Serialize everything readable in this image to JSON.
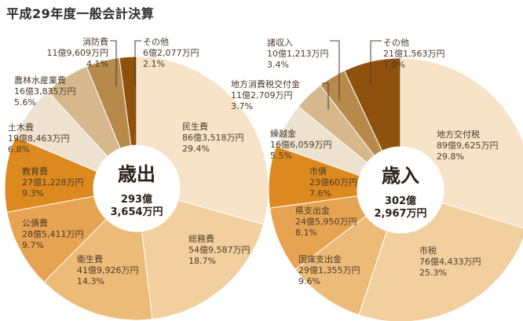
{
  "header": {
    "title": "平成29年度一般会計決算"
  },
  "chart_data": [
    {
      "type": "pie",
      "center_label": "歳出",
      "total_lines": [
        "293億",
        "3,654万円"
      ],
      "slices": [
        {
          "name": "民生費",
          "amount": "86億3,518万円",
          "percent_label": "29.4%",
          "value": 29.4,
          "color": "#f7e3c8"
        },
        {
          "name": "総務費",
          "amount": "54億9,587万円",
          "percent_label": "18.7%",
          "value": 18.7,
          "color": "#f2cf9f"
        },
        {
          "name": "衛生費",
          "amount": "41億9,926万円",
          "percent_label": "14.3%",
          "value": 14.3,
          "color": "#edbb78"
        },
        {
          "name": "公債費",
          "amount": "28億5,411万円",
          "percent_label": "9.7%",
          "value": 9.7,
          "color": "#e6a453"
        },
        {
          "name": "教育費",
          "amount": "27億1,228万円",
          "percent_label": "9.3%",
          "value": 9.3,
          "color": "#dc8a1f"
        },
        {
          "name": "土木費",
          "amount": "19億8,463万円",
          "percent_label": "6.8%",
          "value": 6.8,
          "color": "#ede1cf"
        },
        {
          "name": "農林水産業費",
          "amount": "16億3,835万円",
          "percent_label": "5.6%",
          "value": 5.6,
          "color": "#d7b88c"
        },
        {
          "name": "消防費",
          "amount": "11億9,609万円",
          "percent_label": "4.1%",
          "value": 4.1,
          "color": "#b78a4c"
        },
        {
          "name": "その他",
          "amount": "6億2,077万円",
          "percent_label": "2.1%",
          "value": 2.1,
          "color": "#8e520e"
        }
      ]
    },
    {
      "type": "pie",
      "center_label": "歳入",
      "total_lines": [
        "302億",
        "2,967万円"
      ],
      "slices": [
        {
          "name": "地方交付税",
          "amount": "89億9,625万円",
          "percent_label": "29.8%",
          "value": 29.8,
          "color": "#f7e3c8"
        },
        {
          "name": "市税",
          "amount": "76億4,433万円",
          "percent_label": "25.3%",
          "value": 25.3,
          "color": "#f2cf9f"
        },
        {
          "name": "国庫支出金",
          "amount": "29億1,355万円",
          "percent_label": "9.6%",
          "value": 9.6,
          "color": "#edbb78"
        },
        {
          "name": "県支出金",
          "amount": "24億5,950万円",
          "percent_label": "8.1%",
          "value": 8.1,
          "color": "#e6a453"
        },
        {
          "name": "市債",
          "amount": "23億60万円",
          "percent_label": "7.6%",
          "value": 7.6,
          "color": "#dc8a1f"
        },
        {
          "name": "繰越金",
          "amount": "16億6,059万円",
          "percent_label": "5.5%",
          "value": 5.5,
          "color": "#ede1cf"
        },
        {
          "name": "地方消費税交付金",
          "amount": "11億2,709万円",
          "percent_label": "3.7%",
          "value": 3.7,
          "color": "#d7b88c"
        },
        {
          "name": "諸収入",
          "amount": "10億1,213万円",
          "percent_label": "3.4%",
          "value": 3.4,
          "color": "#b78a4c"
        },
        {
          "name": "その他",
          "amount": "21億1,563万円",
          "percent_label": "7.0%",
          "value": 7.0,
          "color": "#8e520e"
        }
      ]
    }
  ]
}
